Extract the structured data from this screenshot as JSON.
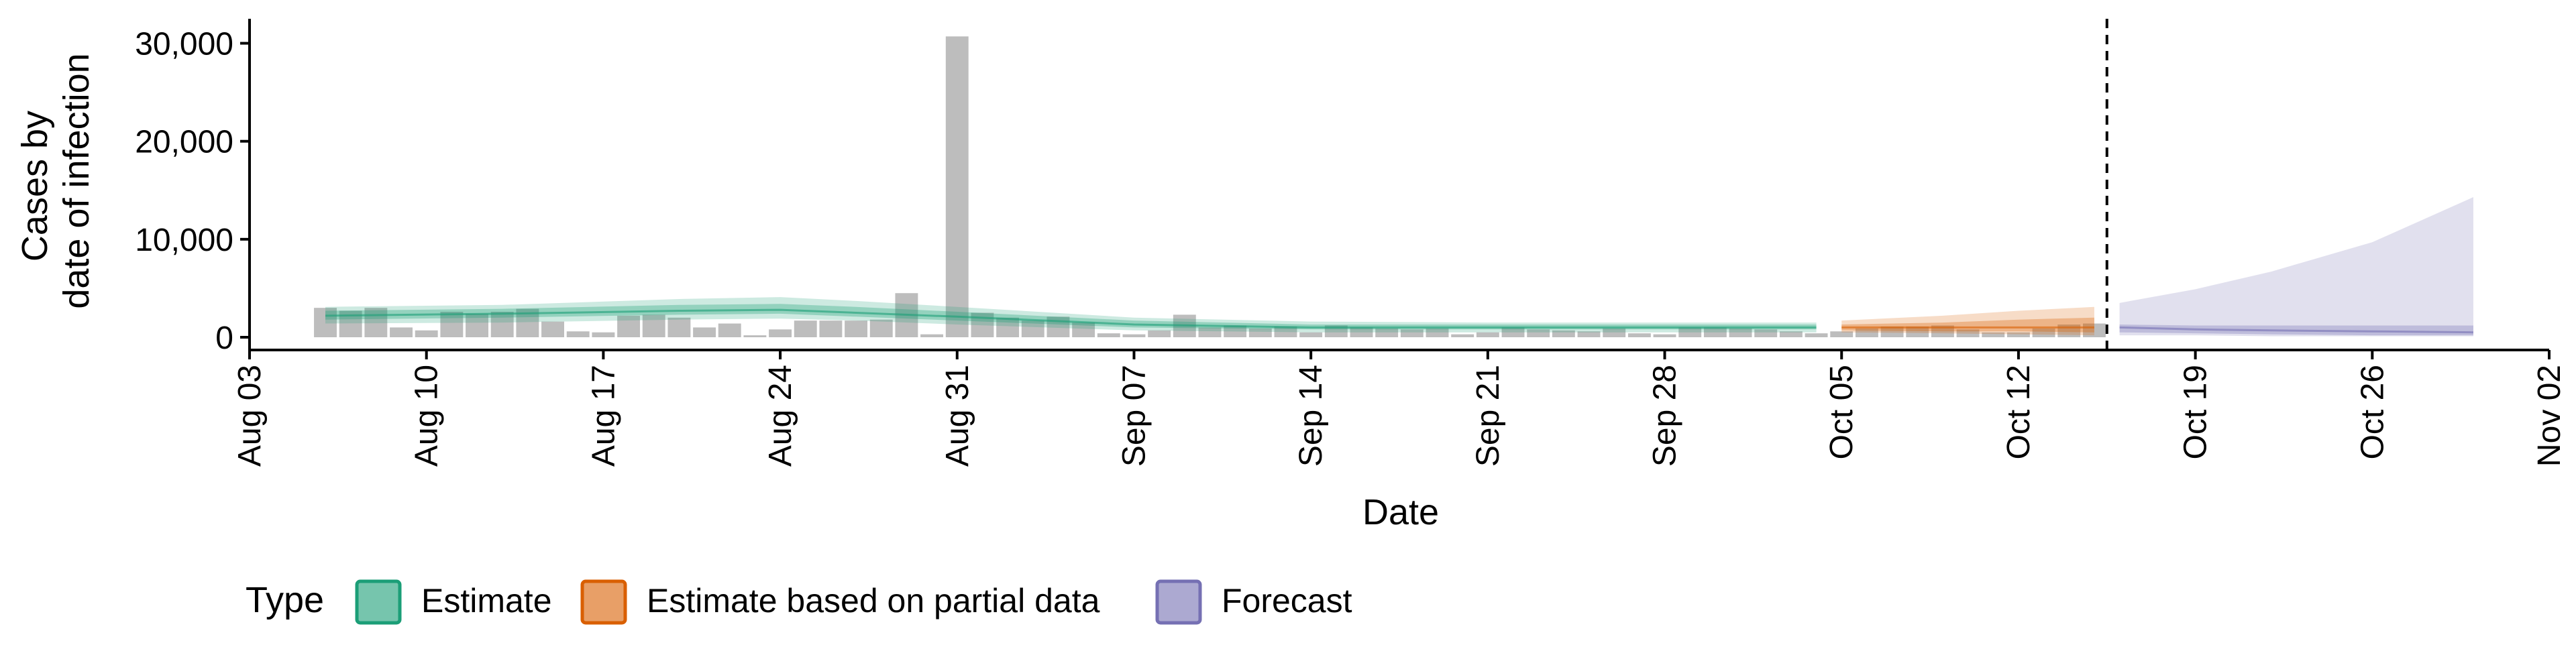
{
  "chart_data": {
    "type": "bar",
    "xlabel": "Date",
    "ylabel_lines": [
      "Cases by",
      "date of infection"
    ],
    "x_ticks": [
      "Aug 03",
      "Aug 10",
      "Aug 17",
      "Aug 24",
      "Aug 31",
      "Sep 07",
      "Sep 14",
      "Sep 21",
      "Sep 28",
      "Oct 05",
      "Oct 12",
      "Oct 19",
      "Oct 26",
      "Nov 02"
    ],
    "x_range": [
      "2020-08-03",
      "2020-11-02"
    ],
    "y_ticks": [
      "0",
      "10,000",
      "20,000",
      "30,000"
    ],
    "y_range": [
      -1300,
      32500
    ],
    "grid": false,
    "forecast_cutoff": "2020-10-15",
    "bars": {
      "color": "#bdbdbd",
      "x": [
        "2020-08-06",
        "2020-08-07",
        "2020-08-08",
        "2020-08-09",
        "2020-08-10",
        "2020-08-11",
        "2020-08-12",
        "2020-08-13",
        "2020-08-14",
        "2020-08-15",
        "2020-08-16",
        "2020-08-17",
        "2020-08-18",
        "2020-08-19",
        "2020-08-20",
        "2020-08-21",
        "2020-08-22",
        "2020-08-23",
        "2020-08-24",
        "2020-08-25",
        "2020-08-26",
        "2020-08-27",
        "2020-08-28",
        "2020-08-29",
        "2020-08-30",
        "2020-08-31",
        "2020-09-01",
        "2020-09-02",
        "2020-09-03",
        "2020-09-04",
        "2020-09-05",
        "2020-09-06",
        "2020-09-07",
        "2020-09-08",
        "2020-09-09",
        "2020-09-10",
        "2020-09-11",
        "2020-09-12",
        "2020-09-13",
        "2020-09-14",
        "2020-09-15",
        "2020-09-16",
        "2020-09-17",
        "2020-09-18",
        "2020-09-19",
        "2020-09-20",
        "2020-09-21",
        "2020-09-22",
        "2020-09-23",
        "2020-09-24",
        "2020-09-25",
        "2020-09-26",
        "2020-09-27",
        "2020-09-28",
        "2020-09-29",
        "2020-09-30",
        "2020-10-01",
        "2020-10-02",
        "2020-10-03",
        "2020-10-04",
        "2020-10-05",
        "2020-10-06",
        "2020-10-07",
        "2020-10-08",
        "2020-10-09",
        "2020-10-10",
        "2020-10-11",
        "2020-10-12",
        "2020-10-13",
        "2020-10-14",
        "2020-10-15"
      ],
      "values": [
        3000,
        2700,
        3000,
        1000,
        700,
        2600,
        2400,
        2600,
        2900,
        1600,
        600,
        500,
        2200,
        2300,
        2000,
        1000,
        1400,
        200,
        800,
        1700,
        1700,
        1700,
        1800,
        4500,
        300,
        30700,
        2500,
        2000,
        1700,
        2100,
        1500,
        400,
        300,
        700,
        2300,
        1000,
        1200,
        900,
        1100,
        500,
        1200,
        1000,
        900,
        800,
        900,
        300,
        500,
        1000,
        800,
        700,
        600,
        900,
        400,
        300,
        1000,
        1000,
        900,
        800,
        600,
        400,
        600,
        900,
        1100,
        1100,
        1200,
        800,
        500,
        500,
        900,
        1300,
        1400
      ]
    },
    "series": [
      {
        "name": "Estimate",
        "color": "#1b9e77",
        "x": [
          "2020-08-06",
          "2020-08-13",
          "2020-08-20",
          "2020-08-24",
          "2020-08-27",
          "2020-08-31",
          "2020-09-07",
          "2020-09-14",
          "2020-09-21",
          "2020-09-28",
          "2020-10-04"
        ],
        "median": [
          2200,
          2400,
          2700,
          2800,
          2500,
          2100,
          1300,
          1000,
          1000,
          1000,
          1000
        ],
        "lower_50": [
          1800,
          2000,
          2300,
          2400,
          2100,
          1700,
          1000,
          800,
          800,
          800,
          800
        ],
        "upper_50": [
          2700,
          2900,
          3300,
          3400,
          3100,
          2600,
          1700,
          1300,
          1300,
          1300,
          1300
        ],
        "lower_90": [
          1400,
          1500,
          1800,
          1900,
          1700,
          1300,
          700,
          500,
          500,
          500,
          500
        ],
        "upper_90": [
          3100,
          3300,
          3900,
          4100,
          3700,
          3100,
          2000,
          1600,
          1500,
          1500,
          1500
        ]
      },
      {
        "name": "Estimate based on partial data",
        "color": "#d95f02",
        "x": [
          "2020-10-05",
          "2020-10-09",
          "2020-10-12",
          "2020-10-15"
        ],
        "median": [
          1000,
          1000,
          1000,
          1000
        ],
        "lower_50": [
          700,
          600,
          600,
          500
        ],
        "upper_50": [
          1300,
          1500,
          1800,
          2000
        ],
        "lower_90": [
          500,
          400,
          300,
          200
        ],
        "upper_90": [
          1700,
          2200,
          2700,
          3100
        ]
      },
      {
        "name": "Forecast",
        "color": "#7570b3",
        "x": [
          "2020-10-16",
          "2020-10-19",
          "2020-10-22",
          "2020-10-26",
          "2020-10-30"
        ],
        "median": [
          1000,
          800,
          700,
          600,
          500
        ],
        "lower_50": [
          500,
          400,
          300,
          200,
          200
        ],
        "upper_50": [
          1300,
          1200,
          1200,
          1200,
          1200
        ],
        "lower_90": [
          200,
          200,
          100,
          100,
          100
        ],
        "upper_90": [
          3500,
          4900,
          6700,
          9700,
          14300
        ]
      }
    ],
    "legend": {
      "title": "Type",
      "position": "bottom-left",
      "items": [
        "Estimate",
        "Estimate based on partial data",
        "Forecast"
      ]
    }
  }
}
